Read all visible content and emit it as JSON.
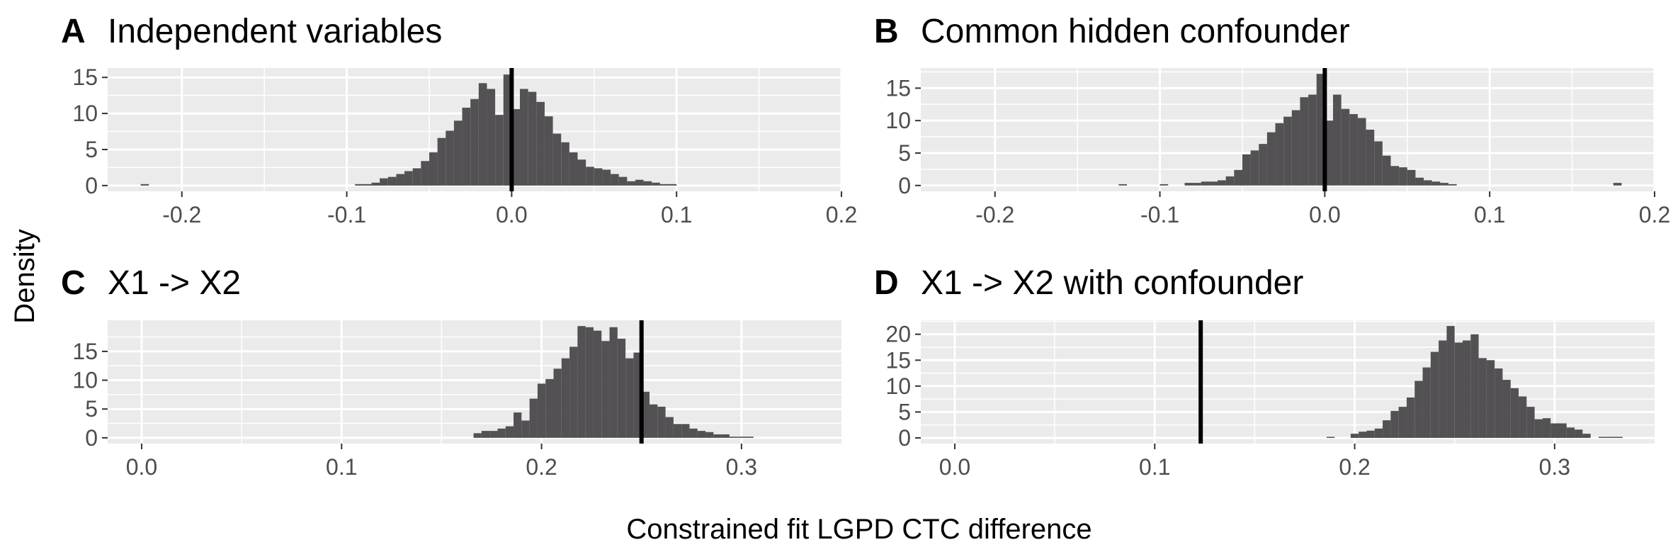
{
  "figure": {
    "ylabel": "Density",
    "xlabel": "Constrained fit LGPD CTC difference"
  },
  "chart_data": [
    {
      "type": "bar",
      "panel": "A",
      "title": "Independent variables",
      "binwidth": 0.005,
      "bin_left_edges": [
        -0.225,
        -0.095,
        -0.09,
        -0.085,
        -0.08,
        -0.075,
        -0.07,
        -0.065,
        -0.06,
        -0.055,
        -0.05,
        -0.045,
        -0.04,
        -0.035,
        -0.03,
        -0.025,
        -0.02,
        -0.015,
        -0.01,
        -0.005,
        0.0,
        0.005,
        0.01,
        0.015,
        0.02,
        0.025,
        0.03,
        0.035,
        0.04,
        0.045,
        0.05,
        0.055,
        0.06,
        0.065,
        0.07,
        0.075,
        0.08,
        0.085,
        0.09,
        0.095
      ],
      "density": [
        0.2,
        0.2,
        0.2,
        0.4,
        1.0,
        1.2,
        1.6,
        2.0,
        2.4,
        3.4,
        4.6,
        6.6,
        7.6,
        9.0,
        10.8,
        12.0,
        14.2,
        13.4,
        9.8,
        15.4,
        10.6,
        13.4,
        13.0,
        11.6,
        9.6,
        7.2,
        6.0,
        4.6,
        3.6,
        2.6,
        2.4,
        2.2,
        1.6,
        1.2,
        0.6,
        0.8,
        0.6,
        0.4,
        0.2,
        0.2
      ],
      "vline": 0.0,
      "xlim": [
        -0.245,
        0.2
      ],
      "ylim": [
        -0.8,
        16.3
      ],
      "xticks": [
        -0.2,
        -0.1,
        0.0,
        0.1,
        0.2
      ],
      "xtick_labels": [
        "-0.2",
        "-0.1",
        "0.0",
        "0.1",
        "0.2"
      ],
      "yticks": [
        0,
        5,
        10,
        15
      ],
      "ytick_labels": [
        "0",
        "5",
        "10",
        "15"
      ],
      "grid": true
    },
    {
      "type": "bar",
      "panel": "B",
      "title": "Common hidden confounder",
      "binwidth": 0.005,
      "bin_left_edges": [
        -0.125,
        -0.1,
        -0.085,
        -0.08,
        -0.075,
        -0.07,
        -0.065,
        -0.06,
        -0.055,
        -0.05,
        -0.045,
        -0.04,
        -0.035,
        -0.03,
        -0.025,
        -0.02,
        -0.015,
        -0.01,
        -0.005,
        0.0,
        0.005,
        0.01,
        0.015,
        0.02,
        0.025,
        0.03,
        0.035,
        0.04,
        0.045,
        0.05,
        0.055,
        0.06,
        0.065,
        0.07,
        0.075,
        0.175
      ],
      "density": [
        0.2,
        0.2,
        0.4,
        0.4,
        0.6,
        0.6,
        0.8,
        1.4,
        2.4,
        4.8,
        5.4,
        6.4,
        8.2,
        9.6,
        10.6,
        11.6,
        13.6,
        14.0,
        17.2,
        10.0,
        14.0,
        11.8,
        11.0,
        10.4,
        8.6,
        6.8,
        4.6,
        3.0,
        2.8,
        2.4,
        1.2,
        0.8,
        0.6,
        0.4,
        0.2,
        0.4
      ],
      "vline": 0.0,
      "xlim": [
        -0.245,
        0.2
      ],
      "ylim": [
        -0.9,
        18.1
      ],
      "xticks": [
        -0.2,
        -0.1,
        0.0,
        0.1,
        0.2
      ],
      "xtick_labels": [
        "-0.2",
        "-0.1",
        "0.0",
        "0.1",
        "0.2"
      ],
      "yticks": [
        0,
        5,
        10,
        15
      ],
      "ytick_labels": [
        "0",
        "5",
        "10",
        "15"
      ],
      "grid": true
    },
    {
      "type": "bar",
      "panel": "C",
      "title": "X1 -> X2",
      "binwidth": 0.004,
      "bin_left_edges": [
        0.166,
        0.17,
        0.174,
        0.178,
        0.182,
        0.186,
        0.19,
        0.194,
        0.198,
        0.202,
        0.206,
        0.21,
        0.214,
        0.218,
        0.222,
        0.226,
        0.23,
        0.234,
        0.238,
        0.242,
        0.246,
        0.25,
        0.254,
        0.258,
        0.262,
        0.266,
        0.27,
        0.274,
        0.278,
        0.282,
        0.286,
        0.29,
        0.294,
        0.298,
        0.302
      ],
      "density": [
        0.8,
        1.2,
        1.2,
        1.6,
        2.0,
        4.4,
        3.0,
        6.8,
        9.4,
        10.2,
        12.0,
        13.8,
        15.8,
        19.4,
        19.2,
        18.6,
        16.8,
        19.2,
        17.2,
        13.8,
        14.8,
        8.0,
        5.8,
        5.4,
        3.6,
        2.4,
        2.4,
        1.6,
        1.2,
        1.0,
        0.6,
        0.6,
        0.2,
        0.2,
        0.2
      ],
      "vline": 0.25,
      "xlim": [
        -0.017,
        0.35
      ],
      "ylim": [
        -1.0,
        20.4
      ],
      "xticks": [
        0.0,
        0.1,
        0.2,
        0.3
      ],
      "xtick_labels": [
        "0.0",
        "0.1",
        "0.2",
        "0.3"
      ],
      "yticks": [
        0,
        5,
        10,
        15
      ],
      "ytick_labels": [
        "0",
        "5",
        "10",
        "15"
      ],
      "grid": true
    },
    {
      "type": "bar",
      "panel": "D",
      "title": "X1 -> X2 with confounder",
      "binwidth": 0.004,
      "bin_left_edges": [
        0.186,
        0.198,
        0.202,
        0.206,
        0.21,
        0.214,
        0.218,
        0.222,
        0.226,
        0.23,
        0.234,
        0.238,
        0.242,
        0.246,
        0.25,
        0.254,
        0.258,
        0.262,
        0.266,
        0.27,
        0.274,
        0.278,
        0.282,
        0.286,
        0.29,
        0.294,
        0.298,
        0.302,
        0.306,
        0.31,
        0.314,
        0.322,
        0.326,
        0.33
      ],
      "density": [
        0.2,
        0.8,
        1.2,
        1.4,
        1.8,
        3.4,
        5.2,
        6.0,
        7.8,
        11.0,
        13.6,
        16.6,
        18.8,
        21.6,
        18.4,
        18.8,
        20.0,
        15.4,
        15.0,
        13.4,
        11.2,
        9.6,
        8.0,
        6.0,
        3.6,
        3.8,
        2.8,
        2.8,
        2.0,
        1.6,
        0.8,
        0.2,
        0.2,
        0.2
      ],
      "vline": 0.123,
      "xlim": [
        -0.017,
        0.35
      ],
      "ylim": [
        -1.1,
        22.7
      ],
      "xticks": [
        0.0,
        0.1,
        0.2,
        0.3
      ],
      "xtick_labels": [
        "0.0",
        "0.1",
        "0.2",
        "0.3"
      ],
      "yticks": [
        0,
        5,
        10,
        15,
        20
      ],
      "ytick_labels": [
        "0",
        "5",
        "10",
        "15",
        "20"
      ],
      "grid": true
    }
  ]
}
